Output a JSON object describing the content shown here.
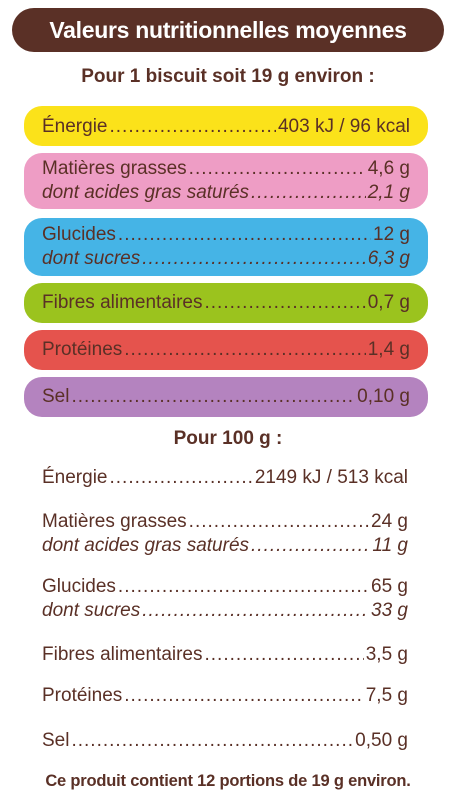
{
  "title": "Valeurs nutritionnelles moyennes",
  "per_portion": {
    "heading": "Pour 1 biscuit soit 19 g environ :",
    "rows": [
      {
        "label": "Énergie",
        "value": "403 kJ / 96 kcal",
        "color": "#fbe21a"
      },
      {
        "label": "Matières grasses",
        "value": "4,6 g",
        "sub_label": "dont acides gras saturés",
        "sub_value": "2,1 g",
        "color": "#ee9dc5"
      },
      {
        "label": "Glucides",
        "value": "12 g",
        "sub_label": "dont sucres",
        "sub_value": "6,3 g",
        "color": "#45b4e6"
      },
      {
        "label": "Fibres alimentaires",
        "value": "0,7 g",
        "color": "#9bc31e"
      },
      {
        "label": "Protéines",
        "value": "1,4 g",
        "color": "#e5534d"
      },
      {
        "label": "Sel",
        "value": "0,10 g",
        "color": "#b483bf"
      }
    ]
  },
  "per_100g": {
    "heading": "Pour 100 g :",
    "rows": [
      {
        "label": "Énergie",
        "value": "2149 kJ / 513 kcal"
      },
      {
        "label": "Matières grasses",
        "value": "24 g",
        "sub_label": "dont acides gras saturés",
        "sub_value": "11 g"
      },
      {
        "label": "Glucides",
        "value": "65 g",
        "sub_label": "dont sucres",
        "sub_value": "33 g"
      },
      {
        "label": "Fibres alimentaires",
        "value": "3,5 g"
      },
      {
        "label": "Protéines",
        "value": "7,5 g"
      },
      {
        "label": "Sel",
        "value": "0,50 g"
      }
    ]
  },
  "footer": "Ce produit contient 12 portions de 19 g environ."
}
